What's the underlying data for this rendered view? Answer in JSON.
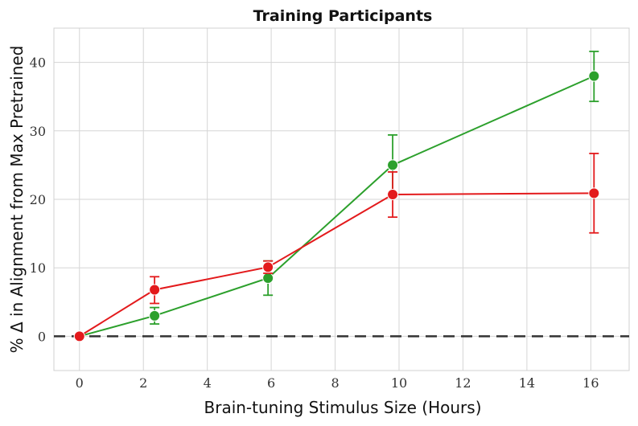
{
  "chart_data": {
    "type": "line",
    "title": "Training Participants",
    "xlabel": "Brain-tuning Stimulus Size (Hours)",
    "ylabel": "% Δ in Alignment from Max Pretrained",
    "xlim": [
      -0.8,
      17.2
    ],
    "ylim": [
      -5,
      45
    ],
    "xticks": [
      "0",
      "2",
      "4",
      "6",
      "8",
      "10",
      "12",
      "14",
      "16"
    ],
    "yticks": [
      "0",
      "10",
      "20",
      "30",
      "40"
    ],
    "grid": true,
    "reference_line": {
      "y": 0,
      "style": "dashed",
      "color": "#333333"
    },
    "series": [
      {
        "color": "#2ca02c",
        "x": [
          0,
          2.35,
          5.9,
          9.8,
          16.1
        ],
        "y": [
          0,
          3.0,
          8.5,
          25.0,
          38.0
        ],
        "err_low": [
          0,
          1.8,
          6.0,
          20.7,
          34.3
        ],
        "err_high": [
          0,
          4.2,
          11.0,
          29.4,
          41.6
        ]
      },
      {
        "color": "#e31a1c",
        "x": [
          0,
          2.35,
          5.9,
          9.8,
          16.1
        ],
        "y": [
          0,
          6.8,
          10.1,
          20.7,
          20.9
        ],
        "err_low": [
          0,
          4.8,
          9.2,
          17.4,
          15.1
        ],
        "err_high": [
          0,
          8.7,
          11.0,
          24.0,
          26.7
        ]
      }
    ]
  }
}
